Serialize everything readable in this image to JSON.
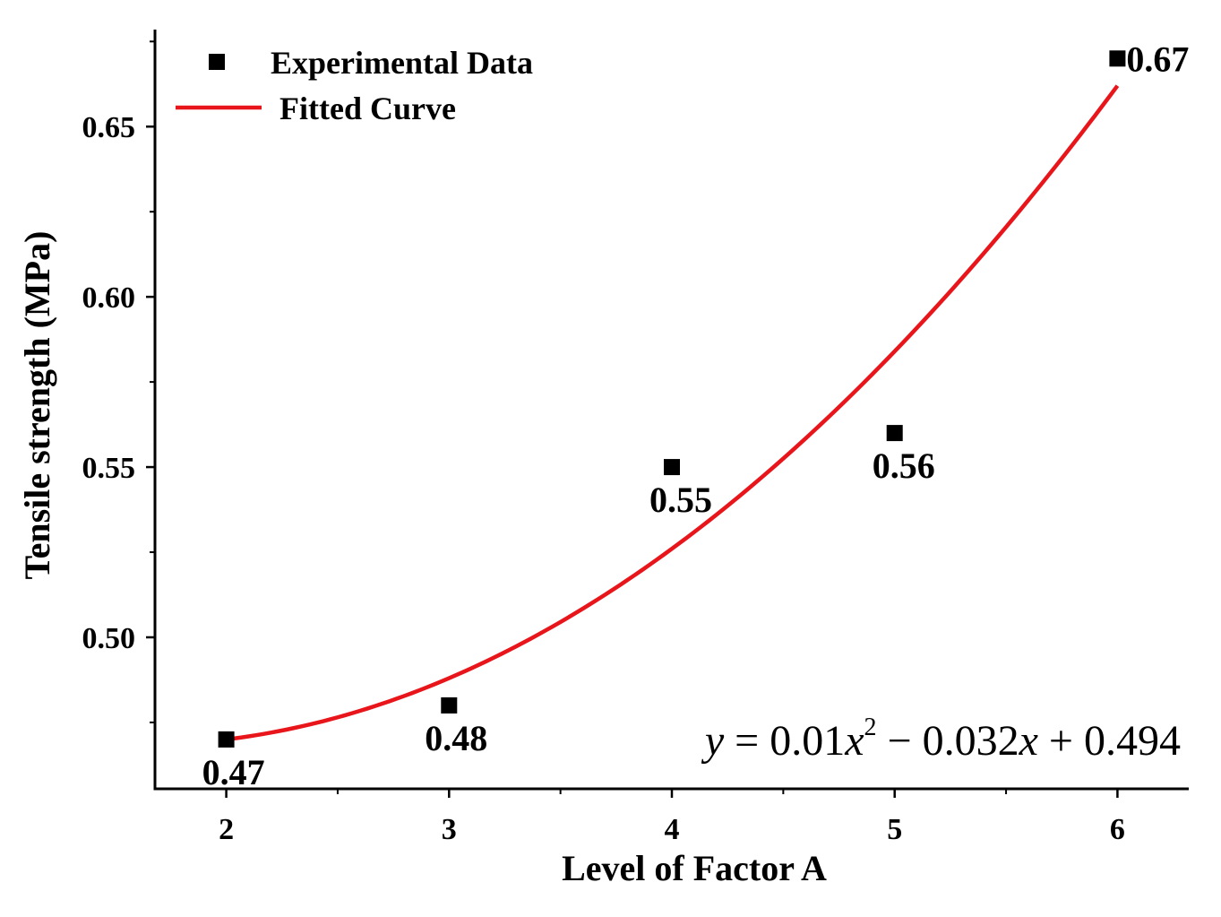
{
  "chart_data": {
    "type": "scatter",
    "title": "",
    "xlabel": "Level of Factor A",
    "ylabel": "Tensile strength (MPa)",
    "xlim": [
      1.68,
      6.32
    ],
    "ylim": [
      0.4555,
      0.6785
    ],
    "x_ticks": [
      2,
      3,
      4,
      5,
      6
    ],
    "x_tick_labels": [
      "2",
      "3",
      "4",
      "5",
      "6"
    ],
    "y_ticks": [
      0.5,
      0.55,
      0.6,
      0.65
    ],
    "y_tick_labels": [
      "0.50",
      "0.55",
      "0.60",
      "0.65"
    ],
    "grid": false,
    "legend_position": "top-left",
    "series": [
      {
        "name": "Experimental Data",
        "kind": "scatter",
        "marker": "square",
        "color": "#000000",
        "x": [
          2,
          3,
          4,
          5,
          6
        ],
        "y": [
          0.47,
          0.48,
          0.55,
          0.56,
          0.67
        ],
        "data_labels": [
          "0.47",
          "0.48",
          "0.55",
          "0.56",
          "0.67"
        ]
      },
      {
        "name": "Fitted Curve",
        "kind": "line",
        "color": "#e8151b",
        "fit": {
          "a": 0.01,
          "b": -0.032,
          "c": 0.494
        },
        "x_range": [
          2,
          6
        ]
      }
    ],
    "annotation": {
      "lhs": "y",
      "eq": " = 0.01",
      "x1": "x",
      "sup": "2",
      "mid": " − 0.032",
      "x2": "x",
      "tail": " + 0.494"
    }
  }
}
